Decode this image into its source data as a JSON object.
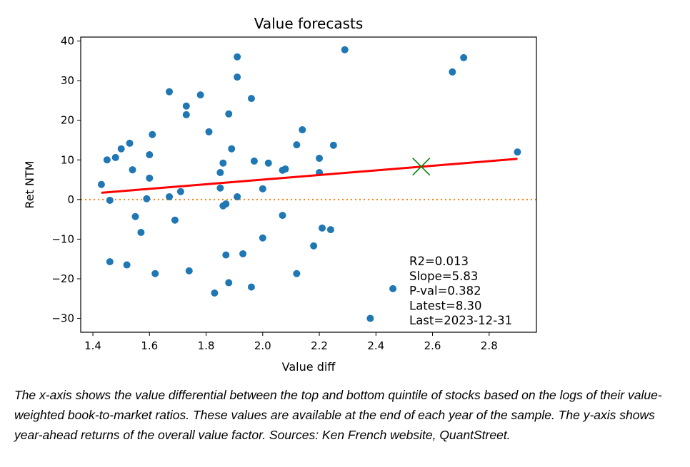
{
  "chart_data": {
    "type": "scatter",
    "title": "Value forecasts",
    "xlabel": "Value diff",
    "ylabel": "Ret NTM",
    "xlim": [
      1.357,
      2.967
    ],
    "ylim": [
      -33.5,
      41.0
    ],
    "xticks": [
      1.4,
      1.6,
      1.8,
      2.0,
      2.2,
      2.4,
      2.6,
      2.8
    ],
    "xtick_labels": [
      "1.4",
      "1.6",
      "1.8",
      "2.0",
      "2.2",
      "2.4",
      "2.6",
      "2.8"
    ],
    "yticks": [
      40,
      30,
      20,
      10,
      0,
      -10,
      -20,
      -30
    ],
    "ytick_labels": [
      "40",
      "30",
      "20",
      "10",
      "0",
      "−10",
      "−20",
      "−30"
    ],
    "grid": false,
    "colors": {
      "points": "#1f77b4",
      "fit": "#ff0000",
      "zero_line": "#ff7f0e",
      "latest": "#008000"
    },
    "points": [
      [
        1.43,
        3.8
      ],
      [
        1.45,
        10.0
      ],
      [
        1.46,
        -0.2
      ],
      [
        1.46,
        -15.7
      ],
      [
        1.48,
        10.6
      ],
      [
        1.5,
        12.8
      ],
      [
        1.52,
        -16.5
      ],
      [
        1.53,
        14.2
      ],
      [
        1.54,
        7.5
      ],
      [
        1.55,
        -4.3
      ],
      [
        1.57,
        -8.3
      ],
      [
        1.59,
        0.2
      ],
      [
        1.6,
        11.3
      ],
      [
        1.6,
        5.4
      ],
      [
        1.61,
        16.4
      ],
      [
        1.62,
        -18.7
      ],
      [
        1.67,
        27.2
      ],
      [
        1.67,
        0.7
      ],
      [
        1.69,
        -5.2
      ],
      [
        1.71,
        2.0
      ],
      [
        1.73,
        21.4
      ],
      [
        1.73,
        23.6
      ],
      [
        1.74,
        -18.0
      ],
      [
        1.78,
        26.4
      ],
      [
        1.81,
        17.1
      ],
      [
        1.83,
        -23.6
      ],
      [
        1.85,
        6.8
      ],
      [
        1.85,
        2.9
      ],
      [
        1.86,
        -1.6
      ],
      [
        1.86,
        9.2
      ],
      [
        1.87,
        -1.1
      ],
      [
        1.87,
        -14.0
      ],
      [
        1.88,
        21.6
      ],
      [
        1.88,
        -21.0
      ],
      [
        1.89,
        12.8
      ],
      [
        1.91,
        30.9
      ],
      [
        1.91,
        36.0
      ],
      [
        1.91,
        0.7
      ],
      [
        1.93,
        -13.7
      ],
      [
        1.96,
        25.5
      ],
      [
        1.96,
        -22.1
      ],
      [
        1.97,
        9.7
      ],
      [
        2.0,
        -9.7
      ],
      [
        2.0,
        2.7
      ],
      [
        2.02,
        9.2
      ],
      [
        2.07,
        7.4
      ],
      [
        2.07,
        -4.0
      ],
      [
        2.08,
        7.7
      ],
      [
        2.12,
        13.8
      ],
      [
        2.12,
        -18.7
      ],
      [
        2.14,
        17.6
      ],
      [
        2.18,
        -11.7
      ],
      [
        2.2,
        10.4
      ],
      [
        2.2,
        6.8
      ],
      [
        2.21,
        -7.2
      ],
      [
        2.24,
        -7.6
      ],
      [
        2.25,
        13.7
      ],
      [
        2.29,
        37.8
      ],
      [
        2.38,
        -30.0
      ],
      [
        2.46,
        -22.5
      ],
      [
        2.67,
        32.2
      ],
      [
        2.71,
        35.8
      ],
      [
        2.9,
        12.0
      ]
    ],
    "fit_line": {
      "x": [
        1.43,
        2.9
      ],
      "y": [
        1.7,
        10.27
      ]
    },
    "zero_line": 0,
    "latest_point": [
      2.56,
      8.3
    ],
    "annotation": [
      "R2=0.013",
      "Slope=5.83",
      "P-val=0.382",
      "Latest=8.30",
      "Last=2023-12-31"
    ]
  },
  "caption": "The x-axis shows the value differential between the top and bottom quintile of stocks based on the logs of their value-weighted book-to-market ratios. These values are available at the end of each year of the sample. The y-axis shows year-ahead returns of the overall value factor. Sources: Ken French website, QuantStreet."
}
